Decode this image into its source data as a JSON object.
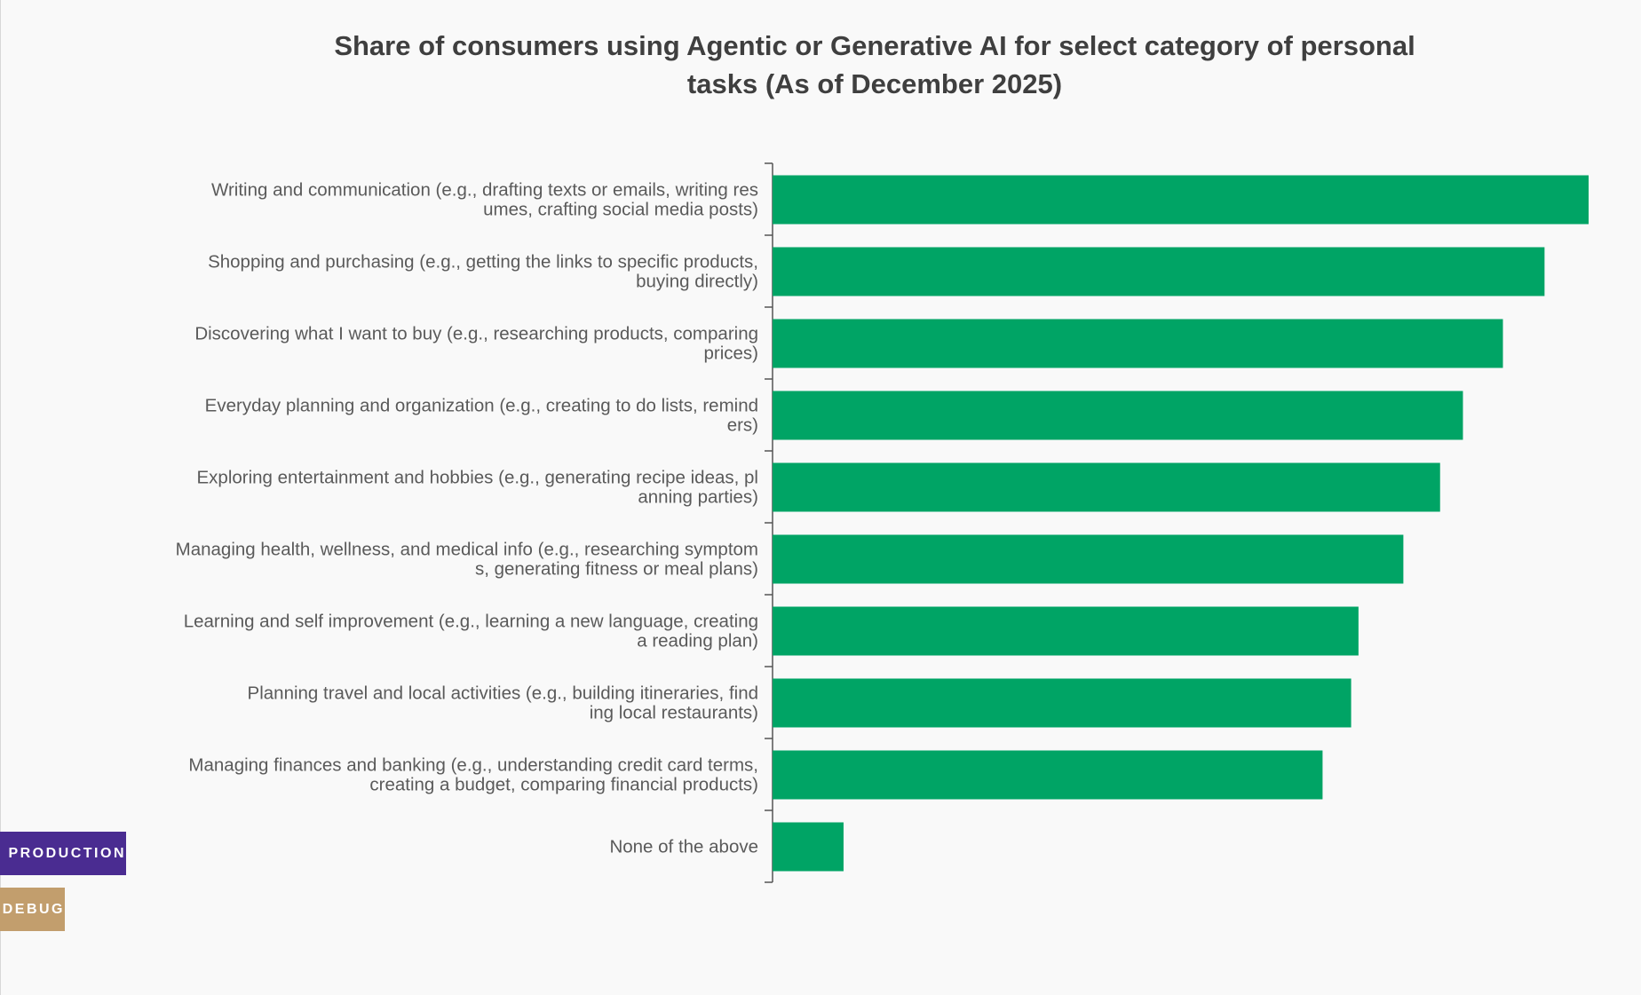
{
  "chart_data": {
    "type": "bar",
    "orientation": "horizontal",
    "title": "Share of consumers using Agentic or Generative AI for select category of personal tasks (As of December 2025)",
    "xlabel": "",
    "ylabel": "",
    "grid": false,
    "bar_color": "#00a465",
    "categories": [
      [
        "Writing and communication (e.g., drafting texts or emails, writing res",
        "umes, crafting social media posts)"
      ],
      [
        "Shopping and purchasing (e.g., getting the links to specific products,",
        "buying directly)"
      ],
      [
        "Discovering what I want to buy (e.g., researching products, comparing",
        "prices)"
      ],
      [
        "Everyday planning and organization (e.g., creating to do lists, remind",
        "ers)"
      ],
      [
        "Exploring entertainment and hobbies (e.g., generating recipe ideas, pl",
        "anning parties)"
      ],
      [
        "Managing health, wellness, and medical info (e.g., researching symptom",
        "s, generating fitness or meal plans)"
      ],
      [
        "Learning and self improvement (e.g., learning a new language, creating",
        "a reading plan)"
      ],
      [
        "Planning travel and local activities (e.g., building itineraries, find",
        "ing local restaurants)"
      ],
      [
        "Managing finances and banking (e.g., understanding credit card terms,",
        "creating a budget, comparing financial products)"
      ],
      [
        "None of the above"
      ]
    ],
    "values": [
      100,
      94.6,
      89.5,
      84.6,
      81.8,
      77.3,
      71.8,
      70.9,
      67.4,
      8.7
    ],
    "xlim": [
      0,
      100
    ]
  },
  "env_badges": {
    "production": "PRODUCTION",
    "debug": "DEBUG"
  }
}
